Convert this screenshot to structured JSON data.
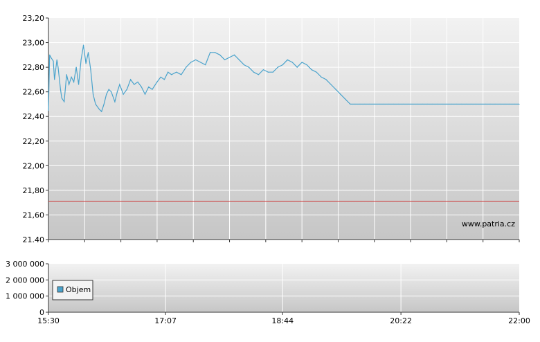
{
  "chart_data": [
    {
      "type": "line",
      "title": "",
      "xlabel": "",
      "ylabel": "",
      "ylim": [
        21.4,
        23.2
      ],
      "xlim": [
        "15:30",
        "22:00"
      ],
      "y_ticks": [
        "23,20",
        "23,00",
        "22,80",
        "22,60",
        "22,40",
        "22,20",
        "22,00",
        "21,80",
        "21,60",
        "21.40"
      ],
      "grid": true,
      "watermark": "www.patria.cz",
      "line_color": "#4aa3cc",
      "reference_line": {
        "value": 21.71,
        "color": "#cc3333"
      },
      "series": [
        {
          "x": [
            "15:30",
            "15:31",
            "15:32",
            "15:34",
            "15:35",
            "15:37",
            "15:38",
            "15:40",
            "15:41",
            "15:43",
            "15:45",
            "15:47",
            "15:49",
            "15:51",
            "15:53",
            "15:55",
            "15:57",
            "15:59",
            "16:01",
            "16:03",
            "16:05",
            "16:07",
            "16:09",
            "16:12",
            "16:14",
            "16:16",
            "16:18",
            "16:20",
            "16:22",
            "16:25",
            "16:27",
            "16:29",
            "16:32",
            "16:35",
            "16:38",
            "16:41",
            "16:44",
            "16:47",
            "16:50",
            "16:53",
            "16:56",
            "17:00",
            "17:03",
            "17:06",
            "17:09",
            "17:12",
            "17:16",
            "17:20",
            "17:24",
            "17:28",
            "17:32",
            "17:36",
            "17:40",
            "17:44",
            "17:48",
            "17:52",
            "17:56",
            "18:00",
            "18:04",
            "18:08",
            "18:12",
            "18:16",
            "18:20",
            "18:24",
            "18:28",
            "18:32",
            "18:36",
            "18:40",
            "18:44",
            "18:48",
            "18:52",
            "18:56",
            "19:00",
            "19:04",
            "19:08",
            "19:12",
            "19:16",
            "19:20",
            "19:24",
            "19:28",
            "19:32",
            "19:36",
            "19:40",
            "19:44",
            "19:48",
            "19:52",
            "19:56",
            "20:00",
            "20:04",
            "20:08",
            "20:12",
            "20:16",
            "20:20",
            "20:24",
            "20:28",
            "20:32",
            "20:36",
            "20:40",
            "20:44",
            "20:48",
            "20:52",
            "20:56",
            "21:00",
            "21:04",
            "21:08",
            "21:12",
            "21:16",
            "21:20",
            "21:24",
            "21:28",
            "21:32",
            "21:36",
            "21:40",
            "21:44",
            "21:48",
            "21:52",
            "21:56",
            "22:00"
          ],
          "values": [
            22.45,
            22.9,
            22.88,
            22.85,
            22.7,
            22.86,
            22.8,
            22.62,
            22.55,
            22.52,
            22.74,
            22.66,
            22.72,
            22.68,
            22.8,
            22.66,
            22.86,
            22.98,
            22.83,
            22.92,
            22.78,
            22.58,
            22.5,
            22.46,
            22.44,
            22.5,
            22.58,
            22.62,
            22.6,
            22.52,
            22.6,
            22.66,
            22.58,
            22.62,
            22.7,
            22.66,
            22.68,
            22.64,
            22.58,
            22.64,
            22.62,
            22.68,
            22.72,
            22.7,
            22.76,
            22.74,
            22.76,
            22.74,
            22.8,
            22.84,
            22.86,
            22.84,
            22.82,
            22.92,
            22.92,
            22.9,
            22.86,
            22.88,
            22.9,
            22.86,
            22.82,
            22.8,
            22.76,
            22.74,
            22.78,
            22.76,
            22.76,
            22.8,
            22.82,
            22.86,
            22.84,
            22.8,
            22.84,
            22.82,
            22.78,
            22.76,
            22.72,
            22.7,
            22.66,
            22.62,
            22.58,
            22.54,
            22.5,
            22.5,
            22.5,
            22.5,
            22.5,
            22.5,
            22.5,
            22.5,
            22.5,
            22.5,
            22.5,
            22.5,
            22.5,
            22.5,
            22.5,
            22.5,
            22.5,
            22.5,
            22.5,
            22.5,
            22.5,
            22.5,
            22.5,
            22.5,
            22.5,
            22.5,
            22.5,
            22.5,
            22.5,
            22.5,
            22.5,
            22.5,
            22.5,
            22.5,
            22.5,
            22.5
          ]
        }
      ]
    },
    {
      "type": "bar",
      "title": "",
      "xlabel": "",
      "ylabel": "",
      "ylim": [
        0,
        3000000
      ],
      "y_ticks": [
        "3 000 000",
        "2 000 000",
        "1 000 000",
        "0"
      ],
      "x_ticks": [
        "15:30",
        "17:07",
        "18:44",
        "20:22",
        "22:00"
      ],
      "legend": {
        "position": "left",
        "entries": [
          {
            "label": "Objem",
            "color": "#4aa3cc"
          }
        ]
      },
      "series": [
        {
          "name": "Objem",
          "values": []
        }
      ]
    }
  ]
}
